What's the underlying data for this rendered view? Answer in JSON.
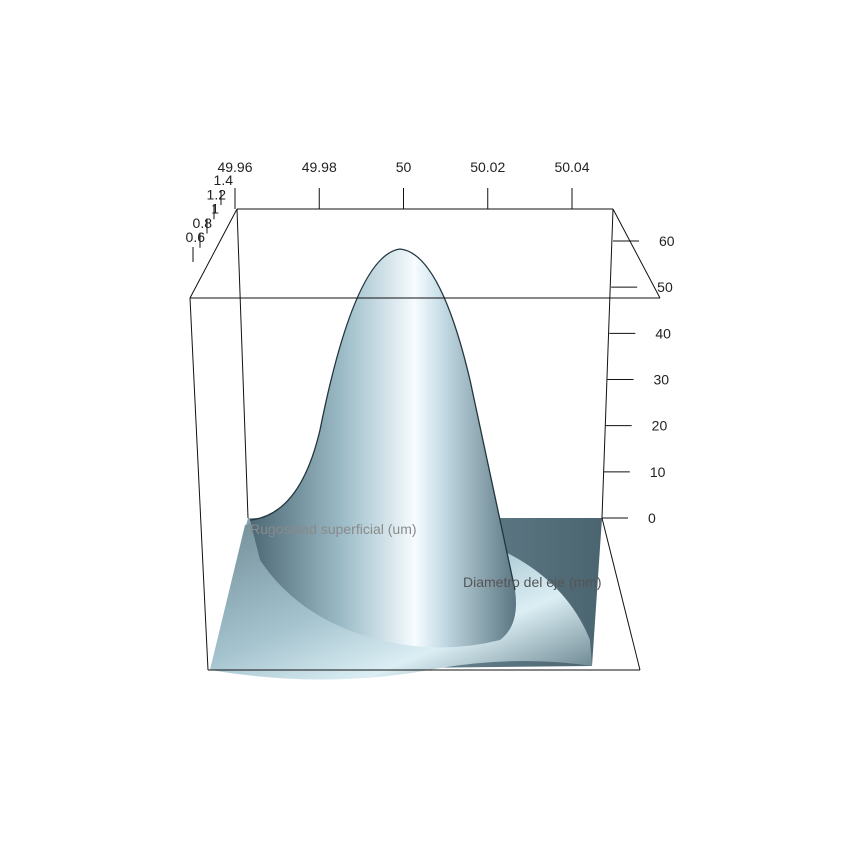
{
  "chart_data": {
    "type": "surface3d",
    "title": "",
    "x_axis": {
      "label": "Diametro del eje (mm)",
      "ticks": [
        "49.96",
        "49.98",
        "50",
        "50.02",
        "50.04"
      ],
      "tick_values": [
        49.96,
        49.98,
        50.0,
        50.02,
        50.04
      ],
      "range": [
        49.96,
        50.05
      ]
    },
    "y_axis": {
      "label": "Rugosidad superficial (um)",
      "ticks": [
        "0.6",
        "0.8",
        "1",
        "1.2",
        "1.4"
      ],
      "tick_values": [
        0.6,
        0.8,
        1.0,
        1.2,
        1.4
      ],
      "range": [
        0.5,
        1.5
      ]
    },
    "z_axis": {
      "label": "",
      "ticks": [
        "0",
        "10",
        "20",
        "30",
        "40",
        "50",
        "60"
      ],
      "tick_values": [
        0,
        10,
        20,
        30,
        40,
        50,
        60
      ],
      "range": [
        0,
        60
      ]
    },
    "surface": {
      "model": "bivariate normal density",
      "peak": {
        "x": 50.0,
        "y": 1.0,
        "z": 57
      },
      "sd_x": 0.013,
      "sd_y": 0.19
    },
    "colors": {
      "surface": "#a9c8d4",
      "box": "#000000",
      "background": "#ffffff"
    },
    "grid": false,
    "legend": "none"
  }
}
